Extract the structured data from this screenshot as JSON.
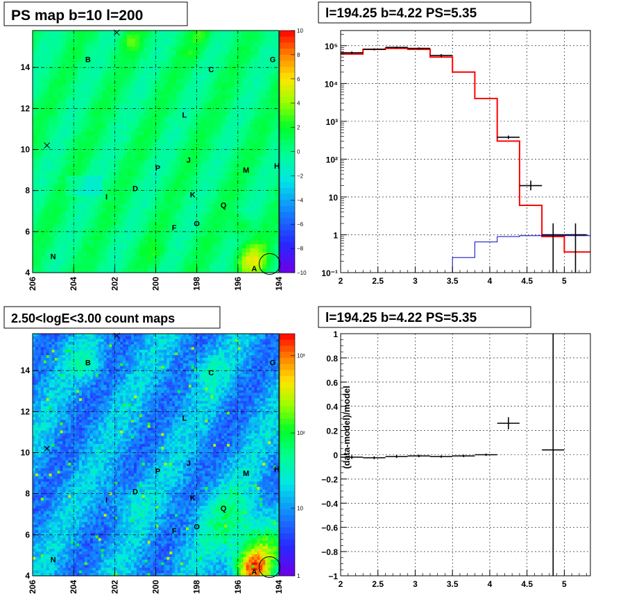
{
  "chart_data": [
    {
      "panel": "top-left",
      "type": "heatmap",
      "title": "PS map b=10 l=200",
      "x_ticks": [
        "206",
        "204",
        "202",
        "200",
        "198",
        "196",
        "194"
      ],
      "y_ticks": [
        "4",
        "6",
        "8",
        "10",
        "12",
        "14"
      ],
      "xlim": [
        206,
        194
      ],
      "ylim": [
        4,
        15.8
      ],
      "palette_ticks": [
        "10",
        "8",
        "6",
        "4",
        "2",
        "0",
        "−2",
        "−4",
        "−6",
        "−8",
        "−10"
      ],
      "palette_range": [
        -10,
        10
      ],
      "grid": true,
      "labels": [
        {
          "text": "B",
          "l": 203.3,
          "b": 14.4
        },
        {
          "text": "C",
          "l": 197.3,
          "b": 13.9
        },
        {
          "text": "G",
          "l": 194.3,
          "b": 14.4
        },
        {
          "text": "L",
          "l": 198.6,
          "b": 11.7
        },
        {
          "text": "P",
          "l": 199.9,
          "b": 9.1
        },
        {
          "text": "J",
          "l": 198.4,
          "b": 9.5
        },
        {
          "text": "M",
          "l": 195.6,
          "b": 9.0
        },
        {
          "text": "H",
          "l": 194.1,
          "b": 9.2
        },
        {
          "text": "I",
          "l": 202.4,
          "b": 7.7
        },
        {
          "text": "D",
          "l": 201.0,
          "b": 8.1
        },
        {
          "text": "K",
          "l": 198.2,
          "b": 7.8
        },
        {
          "text": "Q",
          "l": 196.7,
          "b": 7.3
        },
        {
          "text": "F",
          "l": 199.1,
          "b": 6.2
        },
        {
          "text": "O",
          "l": 198.0,
          "b": 6.4
        },
        {
          "text": "N",
          "l": 205.0,
          "b": 4.8
        },
        {
          "text": "A",
          "l": 195.2,
          "b": 4.2
        }
      ],
      "cross_markers": [
        {
          "l": 201.9,
          "b": 15.7
        },
        {
          "l": 205.3,
          "b": 10.2
        }
      ],
      "circle": {
        "l": 194.25,
        "b": 4.22
      }
    },
    {
      "panel": "top-right",
      "type": "line",
      "title": "l=194.25 b=4.22 PS=5.35",
      "x_ticks": [
        "2",
        "2.5",
        "3",
        "3.5",
        "4",
        "4.5",
        "5"
      ],
      "y_ticks": [
        "10⁻¹",
        "1",
        "10",
        "10²",
        "10³",
        "10⁴",
        "10⁵"
      ],
      "xlim": [
        2,
        5.35
      ],
      "ylim_log10": [
        -1,
        5.4
      ],
      "grid": true,
      "series": [
        {
          "color": "#ff0000",
          "type": "step",
          "edges": [
            2,
            2.3,
            2.6,
            2.9,
            3.2,
            3.5,
            3.8,
            4.1,
            4.4,
            4.7,
            5.0,
            5.35
          ],
          "values": [
            60000,
            80000,
            85000,
            80000,
            50000,
            20000,
            4000,
            300,
            6,
            0.9,
            0.35
          ]
        },
        {
          "color": "#0000c8",
          "type": "step",
          "edges": [
            2,
            2.3,
            2.6,
            2.9,
            3.2,
            3.5,
            3.8,
            4.1,
            4.4,
            4.7,
            5.0,
            5.35
          ],
          "values": [
            0.1,
            0.1,
            0.1,
            0.1,
            0.1,
            0.25,
            0.65,
            0.9,
            0.95,
            0.95,
            0.95
          ]
        },
        {
          "color": "#000000",
          "type": "errorbar",
          "points": [
            {
              "x": 2.15,
              "y": 65000,
              "xerr": 0.15,
              "ylo": 60000,
              "yhi": 70000
            },
            {
              "x": 2.45,
              "y": 80000,
              "xerr": 0.15,
              "ylo": 75000,
              "yhi": 85000
            },
            {
              "x": 2.75,
              "y": 90000,
              "xerr": 0.15,
              "ylo": 85000,
              "yhi": 95000
            },
            {
              "x": 3.05,
              "y": 85000,
              "xerr": 0.15,
              "ylo": 80000,
              "yhi": 90000
            },
            {
              "x": 3.35,
              "y": 55000,
              "xerr": 0.15,
              "ylo": 50000,
              "yhi": 60000
            },
            {
              "x": 4.25,
              "y": 380,
              "xerr": 0.15,
              "ylo": 340,
              "yhi": 420
            },
            {
              "x": 4.55,
              "y": 20,
              "xerr": 0.15,
              "ylo": 15,
              "yhi": 27
            },
            {
              "x": 4.85,
              "y": 1,
              "xerr": 0.15,
              "ylo": 0.1,
              "yhi": 2
            },
            {
              "x": 5.15,
              "y": 1,
              "xerr": 0.15,
              "ylo": 0.1,
              "yhi": 2
            }
          ]
        }
      ]
    },
    {
      "panel": "bottom-left",
      "type": "heatmap",
      "title": "2.50<logE<3.00 count maps",
      "x_ticks": [
        "206",
        "204",
        "202",
        "200",
        "198",
        "196",
        "194"
      ],
      "y_ticks": [
        "4",
        "6",
        "8",
        "10",
        "12",
        "14"
      ],
      "xlim": [
        206,
        194
      ],
      "ylim": [
        4,
        15.8
      ],
      "palette_ticks": [
        "10³",
        "10²",
        "10",
        "1"
      ],
      "palette_log": true,
      "grid": true
    },
    {
      "panel": "bottom-right",
      "type": "scatter",
      "title": "l=194.25 b=4.22 PS=5.35",
      "ylabel": "(data-model)/model",
      "x_ticks": [
        "2",
        "2.5",
        "3",
        "3.5",
        "4",
        "4.5",
        "5"
      ],
      "y_ticks": [
        "−1",
        "−0.8",
        "−0.6",
        "−0.4",
        "−0.2",
        "0",
        "0.2",
        "0.4",
        "0.6",
        "0.8",
        "1"
      ],
      "xlim": [
        2,
        5.35
      ],
      "ylim": [
        -1,
        1
      ],
      "grid": true,
      "points": [
        {
          "x": 2.15,
          "y": -0.02,
          "xerr": 0.15,
          "yerr": 0.015
        },
        {
          "x": 2.45,
          "y": -0.025,
          "xerr": 0.15,
          "yerr": 0.012
        },
        {
          "x": 2.75,
          "y": -0.015,
          "xerr": 0.15,
          "yerr": 0.012
        },
        {
          "x": 3.05,
          "y": -0.01,
          "xerr": 0.15,
          "yerr": 0.01
        },
        {
          "x": 3.35,
          "y": -0.015,
          "xerr": 0.15,
          "yerr": 0.01
        },
        {
          "x": 3.65,
          "y": -0.01,
          "xerr": 0.15,
          "yerr": 0.01
        },
        {
          "x": 3.95,
          "y": 0.0,
          "xerr": 0.15,
          "yerr": 0.01
        },
        {
          "x": 4.25,
          "y": 0.26,
          "xerr": 0.15,
          "yerr": 0.05
        },
        {
          "x": 4.85,
          "y": 0.04,
          "xerr": 0.15,
          "yerr": 1.2
        }
      ]
    }
  ]
}
